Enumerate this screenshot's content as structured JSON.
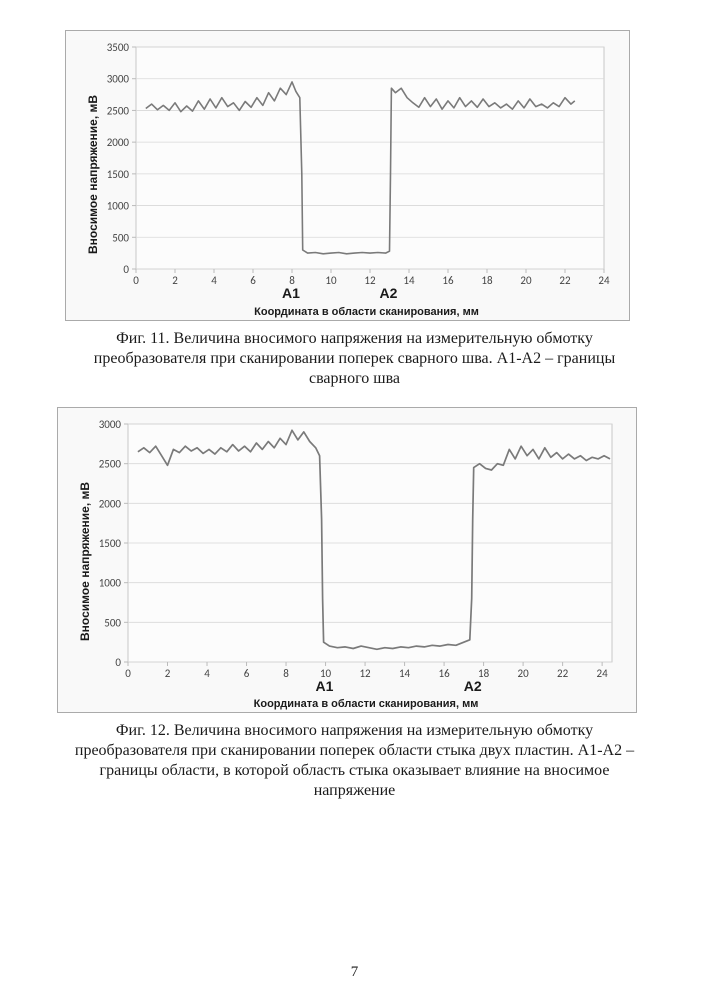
{
  "page_number": "7",
  "chart1": {
    "type": "line",
    "ylabel": "Вносимое напряжение, мВ",
    "xlabel": "Координата в области сканирования, мм",
    "xlim": [
      0,
      24
    ],
    "ylim": [
      0,
      3500
    ],
    "xtick_step": 2,
    "ytick_step": 500,
    "xticks": [
      "0",
      "2",
      "4",
      "6",
      "8",
      "10",
      "12",
      "14",
      "16",
      "18",
      "20",
      "22",
      "24"
    ],
    "yticks": [
      "0",
      "500",
      "1000",
      "1500",
      "2000",
      "2500",
      "3000",
      "3500"
    ],
    "line_color": "#7a7a7a",
    "line_width": 1.6,
    "grid_color": "#d8d8d8",
    "axis_color": "#bbbbbb",
    "background_color": "#fcfcfc",
    "label_fontsize": 12,
    "tick_fontsize": 11,
    "markers": [
      {
        "label": "А1",
        "x": 8
      },
      {
        "label": "А2",
        "x": 13
      }
    ],
    "series": [
      {
        "x": 0.5,
        "y": 2530
      },
      {
        "x": 0.8,
        "y": 2600
      },
      {
        "x": 1.1,
        "y": 2510
      },
      {
        "x": 1.4,
        "y": 2580
      },
      {
        "x": 1.7,
        "y": 2500
      },
      {
        "x": 2.0,
        "y": 2620
      },
      {
        "x": 2.3,
        "y": 2480
      },
      {
        "x": 2.6,
        "y": 2570
      },
      {
        "x": 2.9,
        "y": 2490
      },
      {
        "x": 3.2,
        "y": 2650
      },
      {
        "x": 3.5,
        "y": 2520
      },
      {
        "x": 3.8,
        "y": 2680
      },
      {
        "x": 4.1,
        "y": 2540
      },
      {
        "x": 4.4,
        "y": 2700
      },
      {
        "x": 4.7,
        "y": 2560
      },
      {
        "x": 5.0,
        "y": 2620
      },
      {
        "x": 5.3,
        "y": 2500
      },
      {
        "x": 5.6,
        "y": 2640
      },
      {
        "x": 5.9,
        "y": 2550
      },
      {
        "x": 6.2,
        "y": 2700
      },
      {
        "x": 6.5,
        "y": 2580
      },
      {
        "x": 6.8,
        "y": 2780
      },
      {
        "x": 7.1,
        "y": 2650
      },
      {
        "x": 7.4,
        "y": 2850
      },
      {
        "x": 7.7,
        "y": 2750
      },
      {
        "x": 8.0,
        "y": 2950
      },
      {
        "x": 8.2,
        "y": 2800
      },
      {
        "x": 8.4,
        "y": 2700
      },
      {
        "x": 8.5,
        "y": 1500
      },
      {
        "x": 8.55,
        "y": 300
      },
      {
        "x": 8.8,
        "y": 250
      },
      {
        "x": 9.2,
        "y": 260
      },
      {
        "x": 9.6,
        "y": 240
      },
      {
        "x": 10.0,
        "y": 250
      },
      {
        "x": 10.4,
        "y": 260
      },
      {
        "x": 10.8,
        "y": 240
      },
      {
        "x": 11.2,
        "y": 250
      },
      {
        "x": 11.6,
        "y": 260
      },
      {
        "x": 12.0,
        "y": 250
      },
      {
        "x": 12.4,
        "y": 260
      },
      {
        "x": 12.8,
        "y": 250
      },
      {
        "x": 13.0,
        "y": 280
      },
      {
        "x": 13.05,
        "y": 1500
      },
      {
        "x": 13.1,
        "y": 2850
      },
      {
        "x": 13.3,
        "y": 2780
      },
      {
        "x": 13.6,
        "y": 2850
      },
      {
        "x": 13.9,
        "y": 2700
      },
      {
        "x": 14.2,
        "y": 2620
      },
      {
        "x": 14.5,
        "y": 2550
      },
      {
        "x": 14.8,
        "y": 2700
      },
      {
        "x": 15.1,
        "y": 2560
      },
      {
        "x": 15.4,
        "y": 2680
      },
      {
        "x": 15.7,
        "y": 2520
      },
      {
        "x": 16.0,
        "y": 2650
      },
      {
        "x": 16.3,
        "y": 2540
      },
      {
        "x": 16.6,
        "y": 2700
      },
      {
        "x": 16.9,
        "y": 2560
      },
      {
        "x": 17.2,
        "y": 2650
      },
      {
        "x": 17.5,
        "y": 2550
      },
      {
        "x": 17.8,
        "y": 2680
      },
      {
        "x": 18.1,
        "y": 2560
      },
      {
        "x": 18.4,
        "y": 2620
      },
      {
        "x": 18.7,
        "y": 2540
      },
      {
        "x": 19.0,
        "y": 2600
      },
      {
        "x": 19.3,
        "y": 2520
      },
      {
        "x": 19.6,
        "y": 2650
      },
      {
        "x": 19.9,
        "y": 2540
      },
      {
        "x": 20.2,
        "y": 2680
      },
      {
        "x": 20.5,
        "y": 2560
      },
      {
        "x": 20.8,
        "y": 2600
      },
      {
        "x": 21.1,
        "y": 2540
      },
      {
        "x": 21.4,
        "y": 2620
      },
      {
        "x": 21.7,
        "y": 2560
      },
      {
        "x": 22.0,
        "y": 2700
      },
      {
        "x": 22.3,
        "y": 2600
      },
      {
        "x": 22.5,
        "y": 2650
      }
    ],
    "caption": "Фиг. 11. Величина вносимого напряжения на измерительную обмотку преобразователя при сканировании поперек сварного шва. А1-А2 – границы сварного шва"
  },
  "chart2": {
    "type": "line",
    "ylabel": "Вносимое напряжение, мВ",
    "xlabel": "Координата в области сканирования, мм",
    "xlim": [
      0,
      24.5
    ],
    "ylim": [
      0,
      3000
    ],
    "xtick_step": 2,
    "ytick_step": 500,
    "xticks": [
      "0",
      "2",
      "4",
      "6",
      "8",
      "10",
      "12",
      "14",
      "16",
      "18",
      "20",
      "22",
      "24"
    ],
    "yticks": [
      "0",
      "500",
      "1000",
      "1500",
      "2000",
      "2500",
      "3000"
    ],
    "line_color": "#7a7a7a",
    "line_width": 1.7,
    "grid_color": "#d8d8d8",
    "axis_color": "#bbbbbb",
    "background_color": "#fcfcfc",
    "label_fontsize": 12,
    "tick_fontsize": 11,
    "markers": [
      {
        "label": "А1",
        "x": 10
      },
      {
        "label": "А2",
        "x": 17.5
      }
    ],
    "series": [
      {
        "x": 0.5,
        "y": 2650
      },
      {
        "x": 0.8,
        "y": 2700
      },
      {
        "x": 1.1,
        "y": 2640
      },
      {
        "x": 1.4,
        "y": 2720
      },
      {
        "x": 1.7,
        "y": 2600
      },
      {
        "x": 2.0,
        "y": 2480
      },
      {
        "x": 2.3,
        "y": 2680
      },
      {
        "x": 2.6,
        "y": 2640
      },
      {
        "x": 2.9,
        "y": 2720
      },
      {
        "x": 3.2,
        "y": 2660
      },
      {
        "x": 3.5,
        "y": 2700
      },
      {
        "x": 3.8,
        "y": 2630
      },
      {
        "x": 4.1,
        "y": 2680
      },
      {
        "x": 4.4,
        "y": 2620
      },
      {
        "x": 4.7,
        "y": 2700
      },
      {
        "x": 5.0,
        "y": 2650
      },
      {
        "x": 5.3,
        "y": 2740
      },
      {
        "x": 5.6,
        "y": 2660
      },
      {
        "x": 5.9,
        "y": 2720
      },
      {
        "x": 6.2,
        "y": 2650
      },
      {
        "x": 6.5,
        "y": 2760
      },
      {
        "x": 6.8,
        "y": 2680
      },
      {
        "x": 7.1,
        "y": 2780
      },
      {
        "x": 7.4,
        "y": 2700
      },
      {
        "x": 7.7,
        "y": 2820
      },
      {
        "x": 8.0,
        "y": 2740
      },
      {
        "x": 8.3,
        "y": 2920
      },
      {
        "x": 8.6,
        "y": 2800
      },
      {
        "x": 8.9,
        "y": 2900
      },
      {
        "x": 9.2,
        "y": 2780
      },
      {
        "x": 9.5,
        "y": 2700
      },
      {
        "x": 9.7,
        "y": 2600
      },
      {
        "x": 9.8,
        "y": 1800
      },
      {
        "x": 9.85,
        "y": 800
      },
      {
        "x": 9.9,
        "y": 250
      },
      {
        "x": 10.2,
        "y": 200
      },
      {
        "x": 10.6,
        "y": 180
      },
      {
        "x": 11.0,
        "y": 190
      },
      {
        "x": 11.4,
        "y": 170
      },
      {
        "x": 11.8,
        "y": 200
      },
      {
        "x": 12.2,
        "y": 180
      },
      {
        "x": 12.6,
        "y": 160
      },
      {
        "x": 13.0,
        "y": 180
      },
      {
        "x": 13.4,
        "y": 170
      },
      {
        "x": 13.8,
        "y": 190
      },
      {
        "x": 14.2,
        "y": 180
      },
      {
        "x": 14.6,
        "y": 200
      },
      {
        "x": 15.0,
        "y": 190
      },
      {
        "x": 15.4,
        "y": 210
      },
      {
        "x": 15.8,
        "y": 200
      },
      {
        "x": 16.2,
        "y": 220
      },
      {
        "x": 16.6,
        "y": 210
      },
      {
        "x": 17.0,
        "y": 250
      },
      {
        "x": 17.3,
        "y": 280
      },
      {
        "x": 17.4,
        "y": 800
      },
      {
        "x": 17.45,
        "y": 1800
      },
      {
        "x": 17.5,
        "y": 2450
      },
      {
        "x": 17.8,
        "y": 2500
      },
      {
        "x": 18.1,
        "y": 2440
      },
      {
        "x": 18.4,
        "y": 2420
      },
      {
        "x": 18.7,
        "y": 2500
      },
      {
        "x": 19.0,
        "y": 2480
      },
      {
        "x": 19.3,
        "y": 2680
      },
      {
        "x": 19.6,
        "y": 2560
      },
      {
        "x": 19.9,
        "y": 2720
      },
      {
        "x": 20.2,
        "y": 2600
      },
      {
        "x": 20.5,
        "y": 2680
      },
      {
        "x": 20.8,
        "y": 2560
      },
      {
        "x": 21.1,
        "y": 2700
      },
      {
        "x": 21.4,
        "y": 2580
      },
      {
        "x": 21.7,
        "y": 2640
      },
      {
        "x": 22.0,
        "y": 2560
      },
      {
        "x": 22.3,
        "y": 2620
      },
      {
        "x": 22.6,
        "y": 2560
      },
      {
        "x": 22.9,
        "y": 2600
      },
      {
        "x": 23.2,
        "y": 2540
      },
      {
        "x": 23.5,
        "y": 2580
      },
      {
        "x": 23.8,
        "y": 2560
      },
      {
        "x": 24.1,
        "y": 2600
      },
      {
        "x": 24.4,
        "y": 2560
      }
    ],
    "caption": "Фиг. 12. Величина вносимого напряжения на измерительную обмотку преобразователя при сканировании поперек области стыка двух пластин. А1-А2 – границы области, в которой область стыка оказывает влияние на вносимое напряжение"
  }
}
